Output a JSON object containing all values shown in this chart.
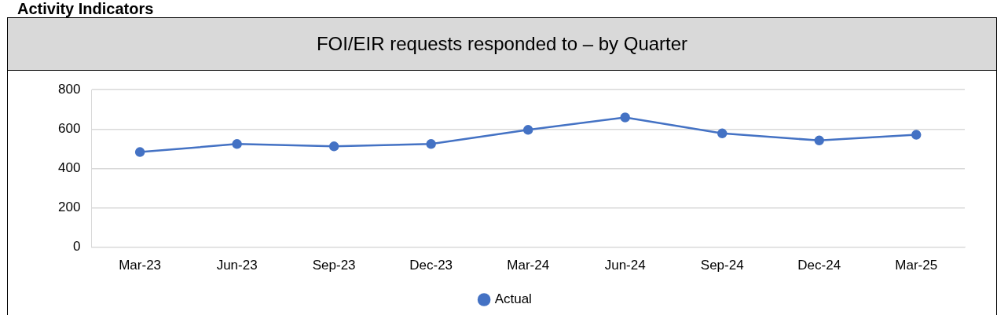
{
  "chart_data": {
    "type": "line",
    "title": "FOI/EIR requests responded to – by Quarter",
    "annotations": [
      "Activity Indicators"
    ],
    "categories": [
      "Mar-23",
      "Jun-23",
      "Sep-23",
      "Dec-23",
      "Mar-24",
      "Jun-24",
      "Sep-24",
      "Dec-24",
      "Mar-25"
    ],
    "series": [
      {
        "name": "Actual",
        "color": "#4472c4",
        "values": [
          483,
          524,
          512,
          524,
          596,
          659,
          578,
          542,
          571
        ]
      }
    ],
    "ylim": [
      0,
      800
    ],
    "yticks": [
      0,
      200,
      400,
      600,
      800
    ],
    "grid": "y",
    "legend": "bottom",
    "marker": "circle"
  }
}
